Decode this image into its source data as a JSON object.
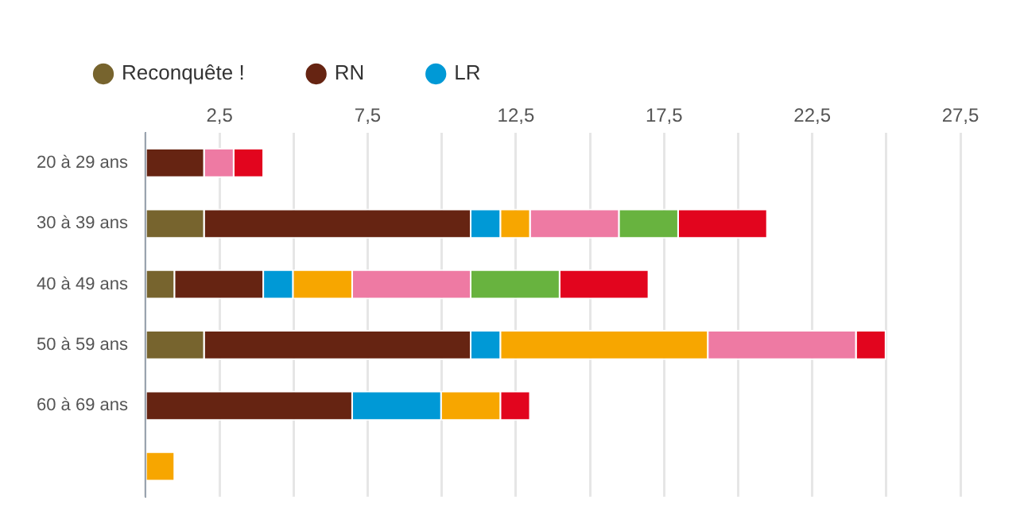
{
  "chart_data": {
    "type": "bar",
    "orientation": "horizontal",
    "stacked": true,
    "legend": "top left",
    "grid": "x",
    "categories": [
      "20 à 29 ans",
      "30 à 39 ans",
      "40 à 49 ans",
      "50 à 59 ans",
      "60 à 69 ans",
      null
    ],
    "xlim": [
      0,
      27.5
    ],
    "xticks": [
      {
        "value": 0,
        "label": null
      },
      {
        "value": 2.5,
        "label": "2,5"
      },
      {
        "value": 5,
        "label": null
      },
      {
        "value": 7.5,
        "label": "7,5"
      },
      {
        "value": 10,
        "label": null
      },
      {
        "value": 12.5,
        "label": "12,5"
      },
      {
        "value": 15,
        "label": null
      },
      {
        "value": 17.5,
        "label": "17,5"
      },
      {
        "value": 20,
        "label": null
      },
      {
        "value": 22.5,
        "label": "22,5"
      },
      {
        "value": 25,
        "label": null
      },
      {
        "value": 27.5,
        "label": "27,5"
      }
    ],
    "series": [
      {
        "name": "Reconquête !",
        "color": "#77642e",
        "values": [
          0,
          2,
          1,
          2,
          0,
          0
        ]
      },
      {
        "name": "RN",
        "color": "#662412",
        "values": [
          2,
          9,
          3,
          9,
          7,
          0
        ]
      },
      {
        "name": "LR",
        "color": "#0099d6",
        "values": [
          0,
          1,
          1,
          1,
          3,
          0
        ]
      },
      {
        "color": "#f7a600",
        "values": [
          0,
          1,
          2,
          7,
          2,
          1
        ]
      },
      {
        "color": "#ee7aa3",
        "values": [
          1,
          3,
          4,
          5,
          0,
          0
        ]
      },
      {
        "color": "#68b33f",
        "values": [
          0,
          2,
          3,
          0,
          0,
          0
        ]
      },
      {
        "color": "#e2051e",
        "values": [
          1,
          3,
          3,
          1,
          1,
          0
        ]
      }
    ]
  }
}
